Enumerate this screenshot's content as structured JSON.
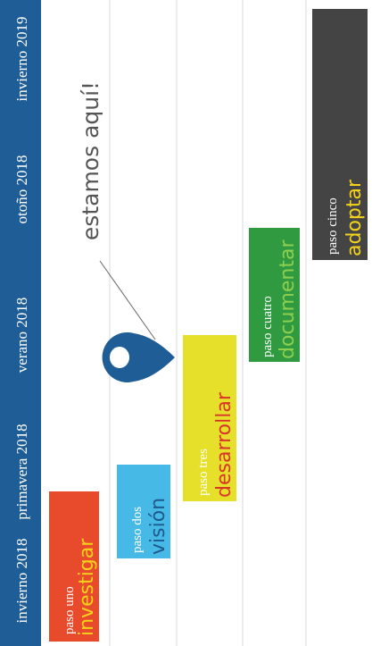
{
  "timeline": {
    "seasons": [
      "invierno 2018",
      "primavera 2018",
      "verano 2018",
      "otoño 2018",
      "invierno 2019"
    ]
  },
  "steps": [
    {
      "label": "paso uno",
      "name": "investigar"
    },
    {
      "label": "paso dos",
      "name": "visión"
    },
    {
      "label": "paso tres",
      "name": "desarrollar"
    },
    {
      "label": "paso cuatro",
      "name": "documentar"
    },
    {
      "label": "paso cinco",
      "name": "adoptar"
    }
  ],
  "marker": {
    "label": "estamos aquí!"
  }
}
